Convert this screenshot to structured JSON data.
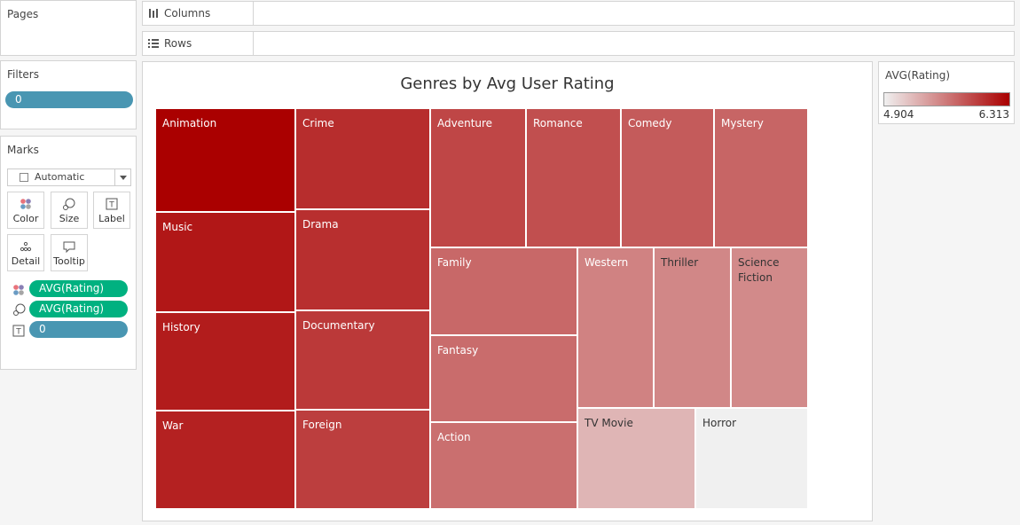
{
  "pages": {
    "title": "Pages"
  },
  "filters": {
    "title": "Filters",
    "pill": "0"
  },
  "marks": {
    "title": "Marks",
    "dropdown": "Automatic",
    "buttons": {
      "color": "Color",
      "size": "Size",
      "label": "Label",
      "detail": "Detail",
      "tooltip": "Tooltip"
    },
    "fields": {
      "color": "AVG(Rating)",
      "size": "AVG(Rating)",
      "label": "0"
    }
  },
  "shelves": {
    "columns": "Columns",
    "rows": "Rows"
  },
  "legend": {
    "title": "AVG(Rating)",
    "min": "4.904",
    "max": "6.313",
    "color_low": "#f0f0f0",
    "color_high": "#aa0000"
  },
  "chart_data": {
    "type": "treemap",
    "title": "Genres by Avg User Rating",
    "color_field": "AVG(Rating)",
    "size_field": "AVG(Rating)",
    "items": [
      {
        "label": "Animation",
        "value": 6.313
      },
      {
        "label": "Music",
        "value": 6.18
      },
      {
        "label": "History",
        "value": 6.15
      },
      {
        "label": "War",
        "value": 6.12
      },
      {
        "label": "Crime",
        "value": 6.05
      },
      {
        "label": "Drama",
        "value": 6.04
      },
      {
        "label": "Documentary",
        "value": 5.98
      },
      {
        "label": "Foreign",
        "value": 5.95
      },
      {
        "label": "Adventure",
        "value": 5.9
      },
      {
        "label": "Romance",
        "value": 5.85
      },
      {
        "label": "Comedy",
        "value": 5.78
      },
      {
        "label": "Mystery",
        "value": 5.72
      },
      {
        "label": "Family",
        "value": 5.7
      },
      {
        "label": "Fantasy",
        "value": 5.68
      },
      {
        "label": "Action",
        "value": 5.66
      },
      {
        "label": "Western",
        "value": 5.55
      },
      {
        "label": "Thriller",
        "value": 5.52
      },
      {
        "label": "Science\nFiction",
        "value": 5.5
      },
      {
        "label": "TV Movie",
        "value": 5.25
      },
      {
        "label": "Horror",
        "value": 4.904
      }
    ]
  }
}
